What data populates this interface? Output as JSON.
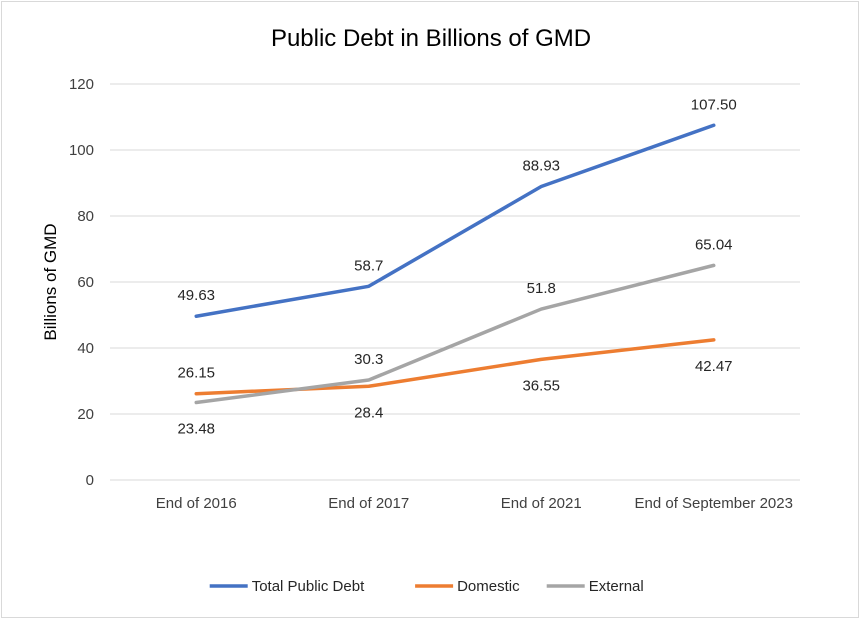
{
  "chart_data": {
    "type": "line",
    "title": "Public Debt in Billions of GMD",
    "ylabel": "Billions of GMD",
    "xlabel": "",
    "categories": [
      "End of 2016",
      "End of 2017",
      "End of 2021",
      "End of September 2023"
    ],
    "ylim": [
      0,
      120
    ],
    "yticks": [
      0,
      20,
      40,
      60,
      80,
      100,
      120
    ],
    "grid": true,
    "legend_position": "bottom",
    "series": [
      {
        "name": "Total Public Debt",
        "color": "#4472c4",
        "values": [
          49.63,
          58.7,
          88.93,
          107.5
        ],
        "labels": [
          "49.63",
          "58.7",
          "88.93",
          "107.50"
        ],
        "label_side": [
          "above",
          "above",
          "above",
          "above"
        ]
      },
      {
        "name": "Domestic",
        "color": "#ed7d31",
        "values": [
          26.15,
          28.4,
          36.55,
          42.47
        ],
        "labels": [
          "26.15",
          "28.4",
          "36.55",
          "42.47"
        ],
        "label_side": [
          "above",
          "below",
          "below",
          "below"
        ]
      },
      {
        "name": "External",
        "color": "#a5a5a5",
        "values": [
          23.48,
          30.3,
          51.8,
          65.04
        ],
        "labels": [
          "23.48",
          "30.3",
          "51.8",
          "65.04"
        ],
        "label_side": [
          "below",
          "above",
          "above",
          "above"
        ]
      }
    ]
  }
}
